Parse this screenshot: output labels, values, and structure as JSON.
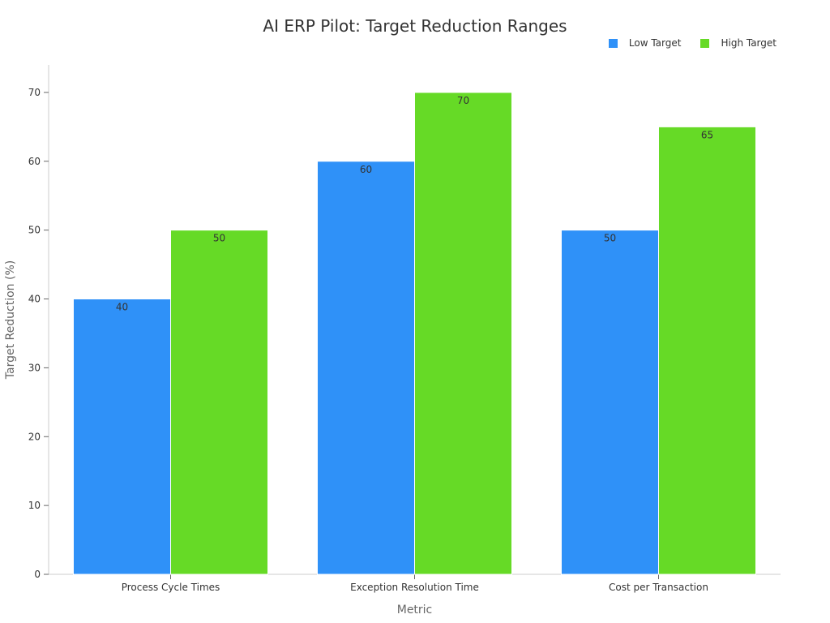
{
  "chart_data": {
    "type": "bar",
    "title": "AI ERP Pilot: Target Reduction Ranges",
    "xlabel": "Metric",
    "ylabel": "Target Reduction (%)",
    "categories": [
      "Process Cycle Times",
      "Exception Resolution Time",
      "Cost per Transaction"
    ],
    "series": [
      {
        "name": "Low Target",
        "values": [
          40,
          60,
          50
        ],
        "color": "#2F91F8"
      },
      {
        "name": "High Target",
        "values": [
          50,
          70,
          65
        ],
        "color": "#66DA26"
      }
    ],
    "ylim": [
      0,
      74
    ],
    "yticks": [
      0,
      10,
      20,
      30,
      40,
      50,
      60,
      70
    ],
    "grid": false,
    "legend_position": "top-right"
  }
}
